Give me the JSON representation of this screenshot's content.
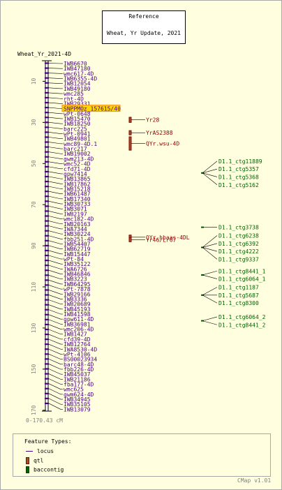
{
  "reference": {
    "heading": "Reference",
    "name": "Wheat, Yr Update, 2021"
  },
  "map": {
    "title": "Wheat_Yr_2021-4D",
    "range_label": "0-170.43 cM",
    "start": 0,
    "end": 170.43,
    "ticks": [
      10,
      30,
      50,
      70,
      90,
      110,
      130,
      150,
      170
    ]
  },
  "colors": {
    "locus": "#4B0082",
    "qtl": "#8B0000",
    "qtl_fill": "#A0522D",
    "contig": "#006400",
    "highlight": "#FFD700",
    "tick_text": "#808080"
  },
  "loci": [
    "IWB6670",
    "IWB47180",
    "wmc617-4D",
    "IWB6355-4D",
    "IWB12054",
    "IWB49180",
    "wmc285",
    "rht-4D",
    "IWB29331",
    "SNPPMOz_157615/40",
    "wPt-0648",
    "IWB15470",
    "IWB18250",
    "barc225",
    "wPt-0941",
    "IWB49801",
    "wmc89-4D.1",
    "barc217",
    "IWB19002",
    "gwm213-4D",
    "wmc52-4D",
    "cfd71-4D",
    "gpw7414",
    "IWB13865",
    "IWB17862",
    "IWB15218",
    "IWB61487",
    "IWB17340",
    "IWB30733",
    "IWB3071",
    "IWB2197",
    "wmc182-4D",
    "IWB20163",
    "IWA7344",
    "IWB30224",
    "fbb251-4D",
    "IWB54407",
    "IWB62719",
    "IWB15447",
    "wPt-84",
    "IWB35122",
    "IWA6726",
    "IWB46846",
    "IWB3223",
    "IWB64295",
    "wPt-7878",
    "IWB29166",
    "IWB3336",
    "IWB20689",
    "IWB45193",
    "IWB41598",
    "gpw611-4D",
    "IWB36981",
    "wmc206-4D",
    "IWB1427",
    "cfd39-4D",
    "IWB12764",
    "IWA8530-4D",
    "wPt-4106",
    "BS00023934",
    "barc48-4D",
    "fbb226-4D",
    "IWB45037",
    "IWB21186",
    "fba177-4D",
    "wmc625",
    "gwm624-4D",
    "IWB34945",
    "IWB35105",
    "IWB13079"
  ],
  "highlighted_locus": "SNPPMOz_157615/40",
  "qtls": [
    {
      "label": "Yr28",
      "start": 27.5,
      "end": 30.0
    },
    {
      "label": "YrAS2388",
      "start": 34.0,
      "end": 35.5
    },
    {
      "label": "QYr.wsu-4D",
      "start": 37.0,
      "end": 43.5
    },
    {
      "label": "QYr.hbaas-4DL",
      "start": 84.8,
      "end": 84.8
    },
    {
      "label": "Yr46/Lr67",
      "start": 86.0,
      "end": 87.8
    }
  ],
  "contig_groups": [
    {
      "pos": 54.6,
      "labels": [
        "D1.1_ctg11889",
        "D1.1_ctg5357",
        "D1.1_ctg5368",
        "D1.1_ctg5162"
      ]
    },
    {
      "pos": 81.0,
      "labels": [
        "D1.1_ctg3738"
      ]
    },
    {
      "pos": 90.8,
      "labels": [
        "D1.1_ctg6238",
        "D1.1_ctg6392",
        "D1.1_ctg4222",
        "D1.1_ctg9337"
      ]
    },
    {
      "pos": 104.2,
      "labels": [
        "D1.1_ctg8441_1",
        "D1.1_ctg6064_1"
      ]
    },
    {
      "pos": 114.0,
      "labels": [
        "D1.1_ctg1187",
        "D1.1_ctg5687",
        "D1.1_ctg8300"
      ]
    },
    {
      "pos": 126.5,
      "labels": [
        "D1.1_ctg6064_2",
        "D1.1_ctg8441_2"
      ]
    }
  ],
  "legend": {
    "title": "Feature Types:",
    "items": [
      {
        "type": "line",
        "label": "locus"
      },
      {
        "type": "box",
        "label": "qtl"
      },
      {
        "type": "box",
        "label": "baccontig"
      }
    ]
  },
  "footer": {
    "version": "CMap v1.01"
  }
}
